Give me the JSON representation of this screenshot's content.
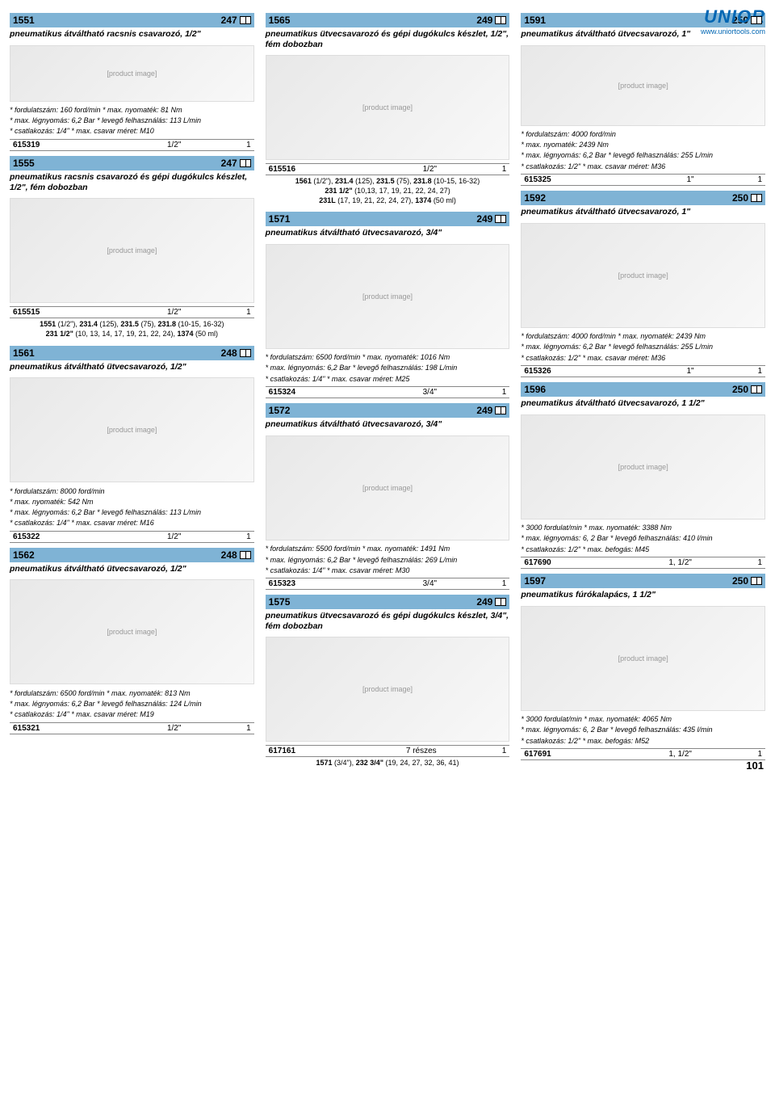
{
  "logo": "UNIOR",
  "url": "www.uniortools.com",
  "pageNum": "101",
  "col1": [
    {
      "t": "hdr",
      "code": "1551",
      "pg": "247"
    },
    {
      "t": "title",
      "v": "pneumatikus átváltható racsnis csavarozó, 1/2\""
    },
    {
      "t": "img",
      "h": "sm"
    },
    {
      "t": "specs",
      "lines": [
        "* fordulatszám: 160 ford/min * max. nyomaték: 81 Nm",
        "* max. légnyomás: 6,2 Bar * levegő felhasználás: 113 L/min",
        "* csatlakozás: 1/4\" * max. csavar méret: M10"
      ]
    },
    {
      "t": "tbl",
      "rows": [
        [
          "615319",
          "1/2\"",
          "1"
        ]
      ]
    },
    {
      "t": "hdr",
      "code": "1555",
      "pg": "247"
    },
    {
      "t": "title",
      "v": "pneumatikus racsnis csavarozó és gépi dugókulcs készlet, 1/2\", fém dobozban"
    },
    {
      "t": "img",
      "h": "lg"
    },
    {
      "t": "tbl",
      "rows": [
        [
          "615515",
          "1/2\"",
          "1"
        ]
      ]
    },
    {
      "t": "extra",
      "v": "<b>1551</b> (1/2\"), <b>231.4</b> (125), <b>231.5</b> (75), <b>231.8</b> (10-15, 16-32)<br><b>231 1/2\"</b> (10, 13, 14, 17, 19, 21, 22, 24), <b>1374</b> (50 ml)"
    },
    {
      "t": "hdr",
      "code": "1561",
      "pg": "248"
    },
    {
      "t": "title",
      "v": "pneumatikus átváltható ütvecsavarozó, 1/2\""
    },
    {
      "t": "img",
      "h": "lg"
    },
    {
      "t": "specs",
      "lines": [
        "* fordulatszám: 8000 ford/min",
        "* max. nyomaték: 542 Nm",
        "* max. légnyomás: 6,2 Bar * levegő felhasználás: 113 L/min",
        "* csatlakozás: 1/4\" * max. csavar méret: M16"
      ]
    },
    {
      "t": "tbl",
      "rows": [
        [
          "615322",
          "1/2\"",
          "1"
        ]
      ]
    },
    {
      "t": "hdr",
      "code": "1562",
      "pg": "248"
    },
    {
      "t": "title",
      "v": "pneumatikus átváltható ütvecsavarozó, 1/2\""
    },
    {
      "t": "img",
      "h": "lg"
    },
    {
      "t": "specs",
      "lines": [
        "* fordulatszám: 6500 ford/min * max. nyomaték: 813 Nm",
        "* max. légnyomás: 6,2 Bar * levegő felhasználás: 124 L/min",
        "* csatlakozás: 1/4\" * max. csavar méret: M19"
      ]
    },
    {
      "t": "tbl",
      "rows": [
        [
          "615321",
          "1/2\"",
          "1"
        ]
      ]
    }
  ],
  "col2": [
    {
      "t": "hdr",
      "code": "1565",
      "pg": "249"
    },
    {
      "t": "title",
      "v": "pneumatikus ütvecsavarozó és gépi dugókulcs készlet, 1/2\", fém dobozban"
    },
    {
      "t": "img",
      "h": "lg"
    },
    {
      "t": "tbl",
      "rows": [
        [
          "615516",
          "1/2\"",
          "1"
        ]
      ]
    },
    {
      "t": "extra",
      "v": "<b>1561</b> (1/2\"), <b>231.4</b> (125), <b>231.5</b> (75), <b>231.8</b> (10-15, 16-32)<br><b>231 1/2\"</b> (10,13, 17, 19, 21, 22, 24, 27)<br><b>231L</b> (17, 19, 21, 22, 24, 27), <b>1374</b> (50 ml)"
    },
    {
      "t": "hdr",
      "code": "1571",
      "pg": "249"
    },
    {
      "t": "title",
      "v": "pneumatikus átváltható ütvecsavarozó, 3/4\""
    },
    {
      "t": "img",
      "h": "lg"
    },
    {
      "t": "specs",
      "lines": [
        "* fordulatszám: 6500 ford/min * max. nyomaték: 1016 Nm",
        "* max. légnyomás: 6,2 Bar * levegő felhasználás: 198 L/min",
        "* csatlakozás: 1/4\" * max. csavar méret: M25"
      ]
    },
    {
      "t": "tbl",
      "rows": [
        [
          "615324",
          "3/4\"",
          "1"
        ]
      ]
    },
    {
      "t": "hdr",
      "code": "1572",
      "pg": "249"
    },
    {
      "t": "title",
      "v": "pneumatikus átváltható ütvecsavarozó, 3/4\""
    },
    {
      "t": "img",
      "h": "lg"
    },
    {
      "t": "specs",
      "lines": [
        "* fordulatszám: 5500 ford/min * max. nyomaték: 1491 Nm",
        "* max. légnyomás: 6,2 Bar * levegő felhasználás: 269 L/min",
        "* csatlakozás: 1/4\" * max. csavar méret: M30"
      ]
    },
    {
      "t": "tbl",
      "rows": [
        [
          "615323",
          "3/4\"",
          "1"
        ]
      ]
    },
    {
      "t": "hdr",
      "code": "1575",
      "pg": "249"
    },
    {
      "t": "title",
      "v": "pneumatikus ütvecsavarozó és gépi dugókulcs készlet, 3/4\", fém dobozban"
    },
    {
      "t": "img",
      "h": "lg"
    },
    {
      "t": "tbl",
      "rows": [
        [
          "617161",
          "7 részes",
          "1"
        ]
      ]
    },
    {
      "t": "extra",
      "v": "<b>1571</b> (3/4\"), <b>232 3/4\"</b> (19, 24, 27, 32, 36, 41)"
    }
  ],
  "col3": [
    {
      "t": "hdr",
      "code": "1591",
      "pg": "250"
    },
    {
      "t": "title",
      "v": "pneumatikus átváltható ütvecsavarozó, 1\""
    },
    {
      "t": "img",
      "h": ""
    },
    {
      "t": "specs",
      "lines": [
        "* fordulatszám: 4000 ford/min",
        "* max. nyomaték: 2439 Nm",
        "* max. légnyomás: 6,2 Bar * levegő felhasználás: 255 L/min",
        "* csatlakozás: 1/2\" * max. csavar méret: M36"
      ]
    },
    {
      "t": "tbl",
      "rows": [
        [
          "615325",
          "1\"",
          "1"
        ]
      ]
    },
    {
      "t": "hdr",
      "code": "1592",
      "pg": "250"
    },
    {
      "t": "title",
      "v": "pneumatikus átváltható ütvecsavarozó, 1\""
    },
    {
      "t": "img",
      "h": "lg"
    },
    {
      "t": "specs",
      "lines": [
        "* fordulatszám: 4000 ford/min * max. nyomaték: 2439 Nm",
        "* max. légnyomás: 6,2 Bar * levegő felhasználás: 255 L/min",
        "* csatlakozás: 1/2\" * max. csavar méret: M36"
      ]
    },
    {
      "t": "tbl",
      "rows": [
        [
          "615326",
          "1\"",
          "1"
        ]
      ]
    },
    {
      "t": "hdr",
      "code": "1596",
      "pg": "250"
    },
    {
      "t": "title",
      "v": "pneumatikus átváltható ütvecsavarozó, 1 1/2\""
    },
    {
      "t": "img",
      "h": "lg"
    },
    {
      "t": "specs",
      "lines": [
        "* 3000 fordulat/min * max. nyomaték: 3388 Nm",
        "* max. légnyomás: 6, 2 Bar * levegő felhasználás: 410 l/min",
        "* csatlakozás: 1/2\" * max. befogás: M45"
      ]
    },
    {
      "t": "tbl",
      "rows": [
        [
          "617690",
          "1, 1/2\"",
          "1"
        ]
      ]
    },
    {
      "t": "hdr",
      "code": "1597",
      "pg": "250"
    },
    {
      "t": "title",
      "v": "pneumatikus fúrókalapács, 1 1/2\""
    },
    {
      "t": "img",
      "h": "lg"
    },
    {
      "t": "specs",
      "lines": [
        "* 3000 fordulat/min * max. nyomaték: 4065 Nm",
        "* max. légnyomás: 6, 2 Bar * levegő felhasználás: 435 l/min",
        "* csatlakozás: 1/2\" * max. befogás: M52"
      ]
    },
    {
      "t": "tbl",
      "rows": [
        [
          "617691",
          "1, 1/2\"",
          "1"
        ]
      ]
    }
  ]
}
